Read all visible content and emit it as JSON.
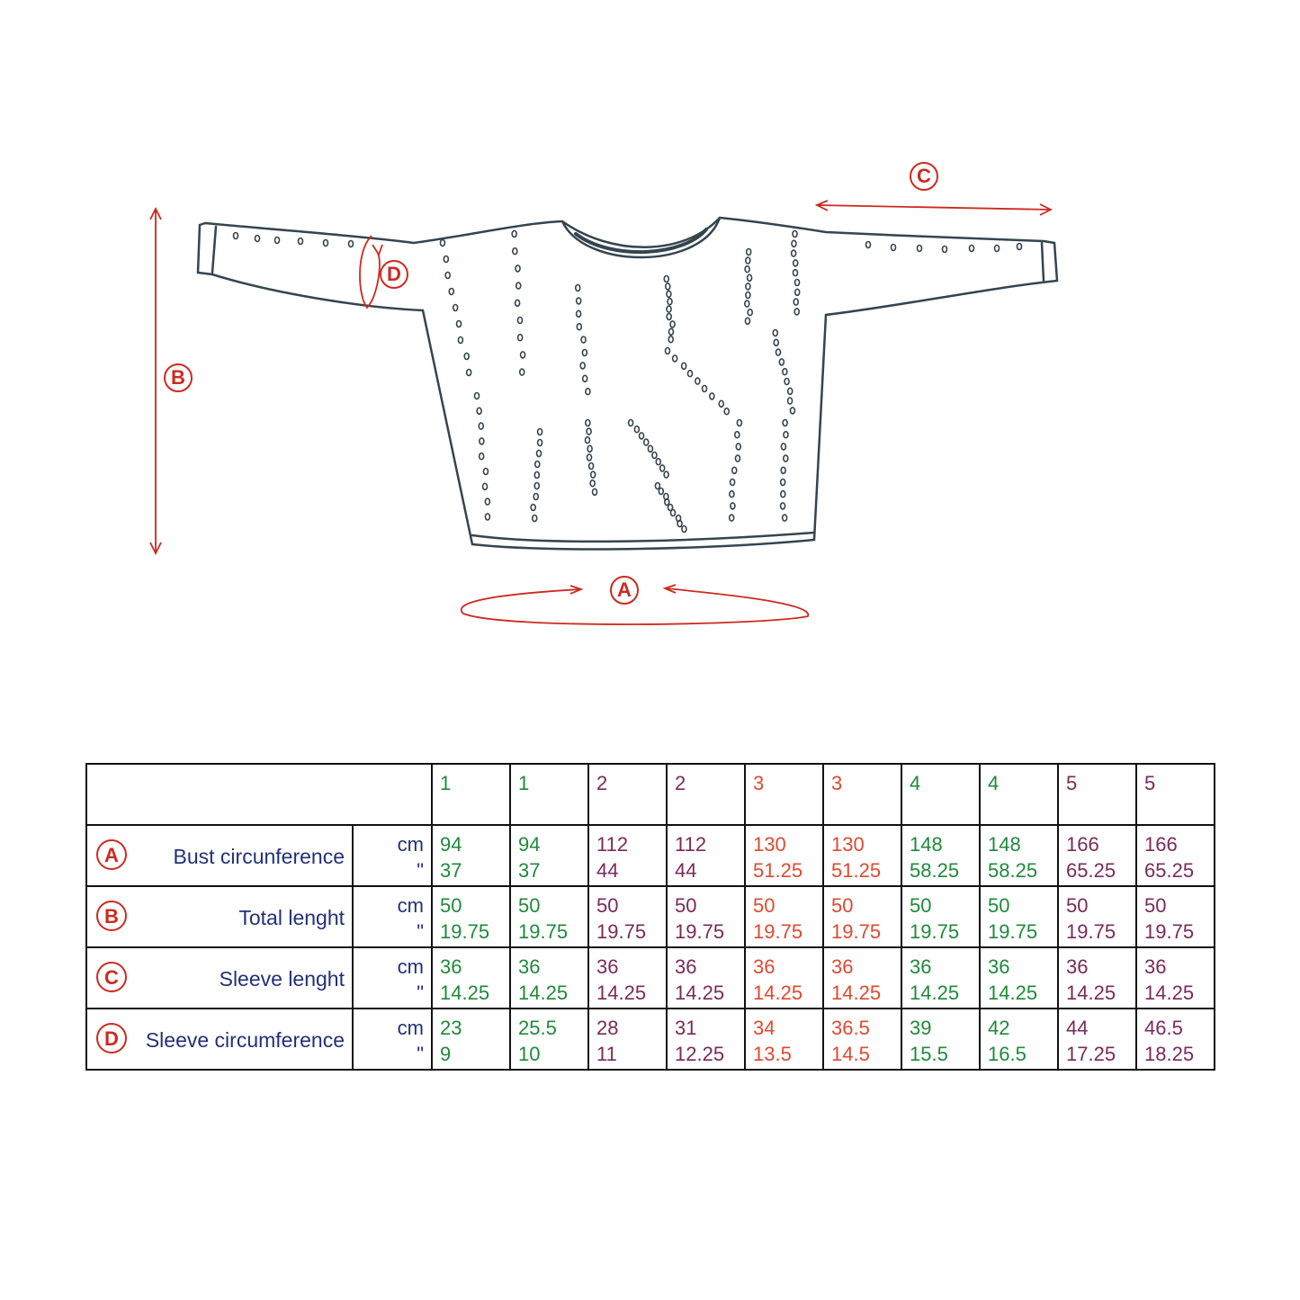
{
  "markers": {
    "a": "A",
    "b": "B",
    "c": "C",
    "d": "D"
  },
  "colors": {
    "marker": "#cc2a1f",
    "label": "#23307a",
    "size_1": "#1e8a3a",
    "size_2": "#7a2a5a",
    "size_3": "#e0492f",
    "size_4": "#1e8a3a",
    "size_5": "#7a2a5a"
  },
  "table": {
    "sizes": [
      "1",
      "1",
      "2",
      "2",
      "3",
      "3",
      "4",
      "4",
      "5",
      "5"
    ],
    "units": {
      "cm": "cm",
      "inch": "\""
    },
    "rows": [
      {
        "marker": "A",
        "label": "Bust circunference",
        "cm": [
          "94",
          "94",
          "112",
          "112",
          "130",
          "130",
          "148",
          "148",
          "166",
          "166"
        ],
        "inch": [
          "37",
          "37",
          "44",
          "44",
          "51.25",
          "51.25",
          "58.25",
          "58.25",
          "65.25",
          "65.25"
        ]
      },
      {
        "marker": "B",
        "label": "Total lenght",
        "cm": [
          "50",
          "50",
          "50",
          "50",
          "50",
          "50",
          "50",
          "50",
          "50",
          "50"
        ],
        "inch": [
          "19.75",
          "19.75",
          "19.75",
          "19.75",
          "19.75",
          "19.75",
          "19.75",
          "19.75",
          "19.75",
          "19.75"
        ]
      },
      {
        "marker": "C",
        "label": "Sleeve lenght",
        "cm": [
          "36",
          "36",
          "36",
          "36",
          "36",
          "36",
          "36",
          "36",
          "36",
          "36"
        ],
        "inch": [
          "14.25",
          "14.25",
          "14.25",
          "14.25",
          "14.25",
          "14.25",
          "14.25",
          "14.25",
          "14.25",
          "14.25"
        ]
      },
      {
        "marker": "D",
        "label": "Sleeve circumference",
        "cm": [
          "23",
          "25.5",
          "28",
          "31",
          "34",
          "36.5",
          "39",
          "42",
          "44",
          "46.5"
        ],
        "inch": [
          "9",
          "10",
          "11",
          "12.25",
          "13.5",
          "14.5",
          "15.5",
          "16.5",
          "17.25",
          "18.25"
        ]
      }
    ]
  }
}
